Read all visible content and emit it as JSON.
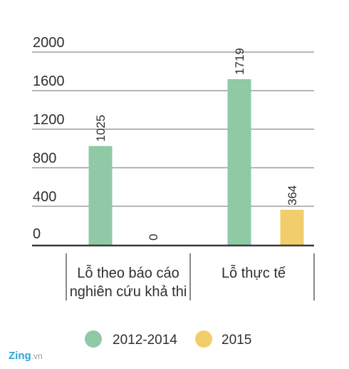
{
  "chart_data": {
    "type": "bar",
    "categories": [
      "Lỗ theo báo cáo nghiên cứu khả thi",
      "Lỗ thực tế"
    ],
    "category_lines": [
      [
        "Lỗ theo báo cáo",
        "nghiên cứu khả thi"
      ],
      [
        "Lỗ thực tế"
      ]
    ],
    "series": [
      {
        "name": "2012-2014",
        "values": [
          1025,
          1719
        ],
        "color": "#8fc9a5"
      },
      {
        "name": "2015",
        "values": [
          0,
          364
        ],
        "color": "#f2cd6b"
      }
    ],
    "data_labels": [
      [
        "1025",
        "0"
      ],
      [
        "1719",
        "364"
      ]
    ],
    "yticks": [
      0,
      400,
      800,
      1200,
      1600,
      2000
    ],
    "ylim": [
      0,
      2000
    ],
    "grid": true,
    "legend_position": "bottom"
  },
  "watermark": {
    "brand": "Zing",
    "suffix": ".vn"
  },
  "colors": {
    "grid": "#8a8a8a",
    "axis": "#3a3a3a",
    "text": "#2f2f2f"
  }
}
